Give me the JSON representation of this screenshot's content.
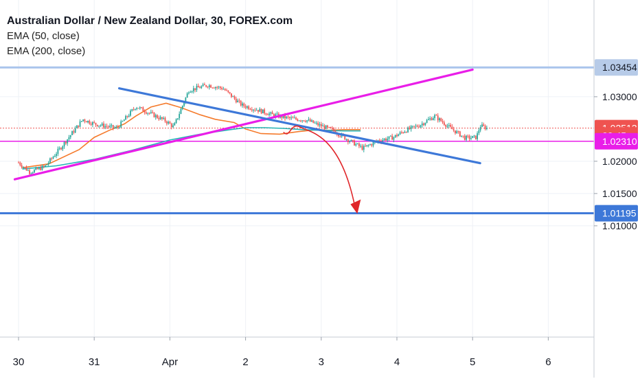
{
  "header": {
    "title": "Australian Dollar / New Zealand Dollar, 30, FOREX.com",
    "indicators": [
      "EMA (50, close)",
      "EMA (200, close)"
    ]
  },
  "chart_data": {
    "type": "candlestick",
    "symbol": "AUDNZD",
    "timeframe": "30",
    "xlabel": "",
    "ylabel": "",
    "x_ticks": [
      "30",
      "31",
      "Apr",
      "2",
      "3",
      "4",
      "5",
      "6"
    ],
    "y_ticks": [
      "1.03000",
      "1.02000",
      "1.01500",
      "1.01000"
    ],
    "ylim": [
      1.0085,
      1.037
    ],
    "grid": true,
    "price_labels": [
      {
        "text": "1.03454",
        "value": 1.03454,
        "color": "#b7cbe8",
        "text_color": "#131722"
      },
      {
        "text": "1.02513",
        "value": 1.02513,
        "color": "#ef5350",
        "text_color": "#ffffff"
      },
      {
        "text": "22:45",
        "value": 1.024,
        "color": "#ef5350",
        "text_color": "#ffffff"
      },
      {
        "text": "1.02310",
        "value": 1.0231,
        "color": "#e91ee8",
        "text_color": "#ffffff"
      },
      {
        "text": "1.01195",
        "value": 1.01195,
        "color": "#3d78d8",
        "text_color": "#ffffff"
      }
    ],
    "horizontal_lines": [
      {
        "name": "resistance",
        "value": 1.03454,
        "color": "#a9c4ec",
        "width": 3
      },
      {
        "name": "support",
        "value": 1.0231,
        "color": "#e91ee8",
        "width": 1.5
      },
      {
        "name": "target",
        "value": 1.01195,
        "color": "#3d78d8",
        "width": 3
      },
      {
        "name": "last-price",
        "value": 1.02513,
        "color": "#ef5350",
        "width": 1,
        "dashed": true
      }
    ],
    "trendlines": [
      {
        "name": "rising-trendline",
        "color": "#e91ee8",
        "from": [
          -0.05,
          1.0172
        ],
        "to": [
          6.0,
          1.0342
        ]
      },
      {
        "name": "falling-trendline",
        "color": "#3d78d8",
        "from": [
          1.33,
          1.0313
        ],
        "to": [
          6.1,
          1.0197
        ]
      }
    ],
    "projection_arrow": {
      "color": "#e0262a",
      "start": [
        3.5,
        1.0245
      ],
      "peak": [
        3.72,
        1.0253
      ],
      "end": [
        4.45,
        1.0127
      ]
    },
    "series": [
      {
        "name": "EMA (50, close)",
        "color": "#f57a2b",
        "points": [
          [
            0.05,
            1.019
          ],
          [
            0.4,
            1.0196
          ],
          [
            0.8,
            1.0218
          ],
          [
            1.0,
            1.0237
          ],
          [
            1.2,
            1.0248
          ],
          [
            1.4,
            1.0258
          ],
          [
            1.55,
            1.027
          ],
          [
            1.75,
            1.0284
          ],
          [
            1.95,
            1.029
          ],
          [
            2.15,
            1.0283
          ],
          [
            2.4,
            1.0272
          ],
          [
            2.6,
            1.0265
          ],
          [
            2.85,
            1.026
          ],
          [
            3.0,
            1.025
          ],
          [
            3.2,
            1.0243
          ],
          [
            3.45,
            1.0242
          ],
          [
            3.7,
            1.0246
          ],
          [
            3.95,
            1.0249
          ],
          [
            4.1,
            1.0248
          ],
          [
            4.3,
            1.0249
          ],
          [
            4.45,
            1.0249
          ],
          [
            4.52,
            1.0249
          ]
        ]
      },
      {
        "name": "EMA (200, close)",
        "color": "#22b5b5",
        "points": [
          [
            0.05,
            1.0188
          ],
          [
            0.5,
            1.0193
          ],
          [
            1.0,
            1.0203
          ],
          [
            1.5,
            1.0217
          ],
          [
            2.0,
            1.0233
          ],
          [
            2.4,
            1.0242
          ],
          [
            2.8,
            1.0249
          ],
          [
            3.0,
            1.0252
          ],
          [
            3.25,
            1.0252
          ],
          [
            3.5,
            1.0251
          ],
          [
            3.75,
            1.0249
          ],
          [
            4.0,
            1.0248
          ],
          [
            4.3,
            1.0247
          ],
          [
            4.52,
            1.0247
          ]
        ]
      },
      {
        "name": "price",
        "color": "#131722",
        "points": [
          [
            0.0,
            1.0198
          ],
          [
            0.15,
            1.0183
          ],
          [
            0.35,
            1.0192
          ],
          [
            0.55,
            1.022
          ],
          [
            0.85,
            1.0265
          ],
          [
            1.0,
            1.0258
          ],
          [
            1.3,
            1.0251
          ],
          [
            1.55,
            1.0285
          ],
          [
            1.95,
            1.0262
          ],
          [
            2.05,
            1.0253
          ],
          [
            2.25,
            1.031
          ],
          [
            2.5,
            1.0318
          ],
          [
            2.7,
            1.0313
          ],
          [
            2.95,
            1.0287
          ],
          [
            3.15,
            1.028
          ],
          [
            3.35,
            1.0272
          ],
          [
            3.6,
            1.0266
          ],
          [
            3.8,
            1.0264
          ],
          [
            3.95,
            1.0257
          ],
          [
            4.15,
            1.0248
          ],
          [
            4.4,
            1.023
          ],
          [
            4.55,
            1.022
          ],
          [
            4.75,
            1.0232
          ],
          [
            4.95,
            1.0237
          ],
          [
            5.1,
            1.0247
          ],
          [
            5.3,
            1.0256
          ],
          [
            5.5,
            1.027
          ],
          [
            5.7,
            1.0252
          ],
          [
            5.9,
            1.0236
          ],
          [
            6.05,
            1.0237
          ],
          [
            6.1,
            1.0255
          ],
          [
            6.2,
            1.0251
          ]
        ]
      }
    ]
  }
}
